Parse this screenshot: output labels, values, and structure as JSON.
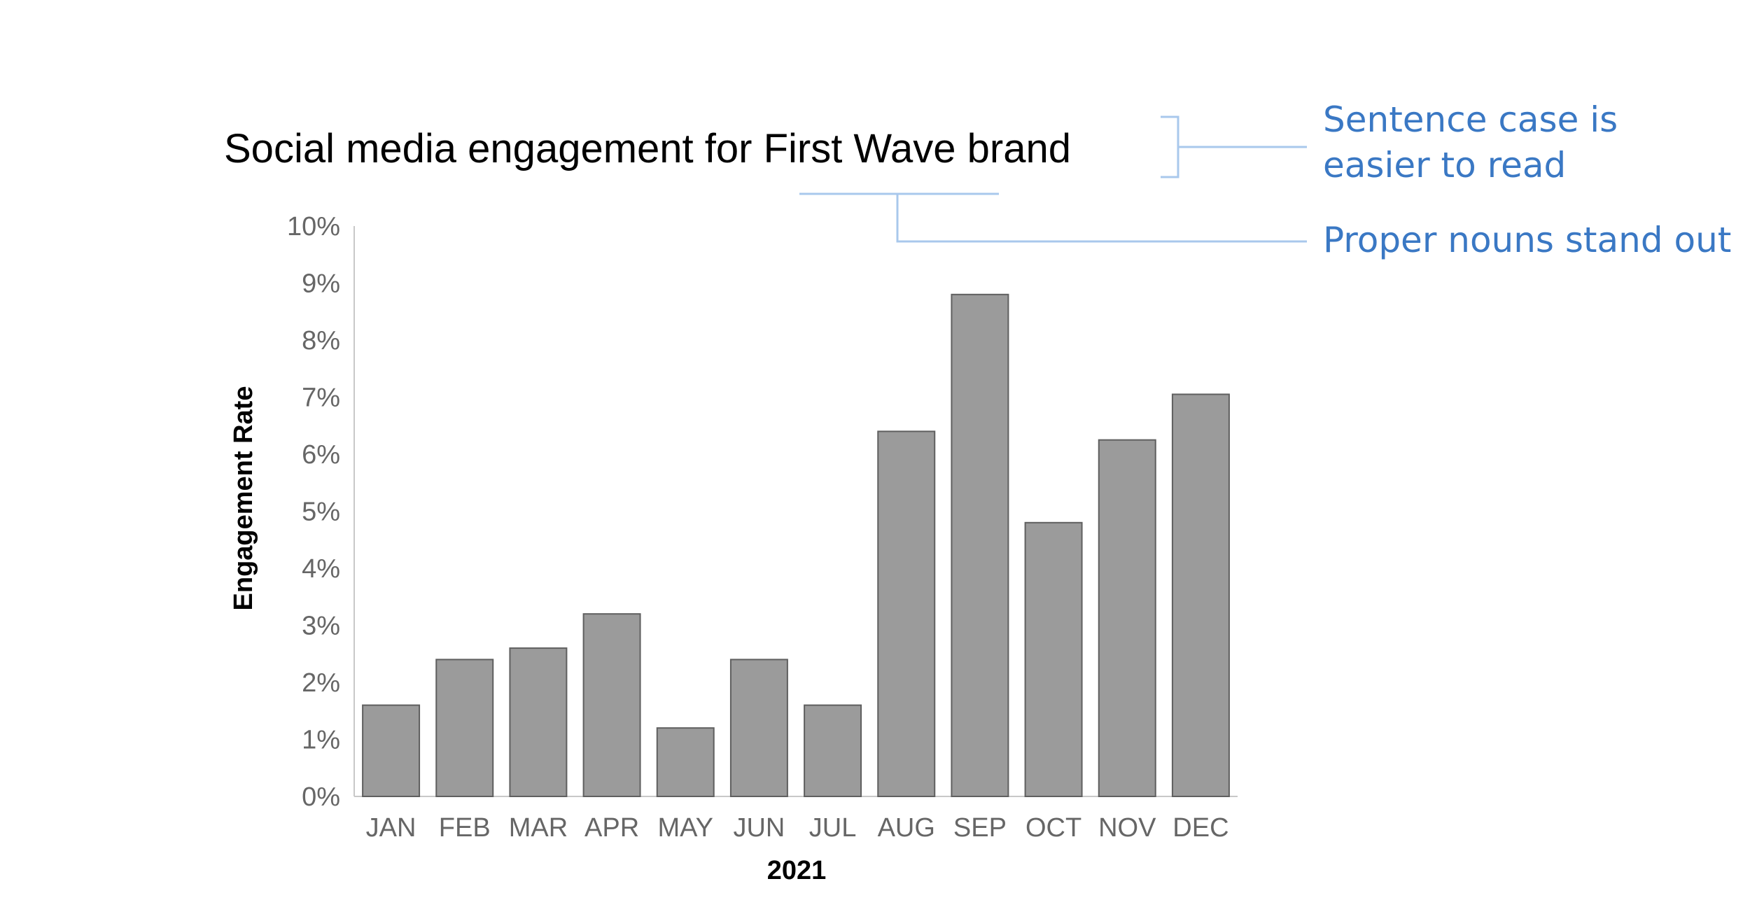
{
  "chart_data": {
    "type": "bar",
    "title": "Social media engagement for First Wave brand",
    "xlabel": "2021",
    "ylabel": "Engagement Rate",
    "categories": [
      "JAN",
      "FEB",
      "MAR",
      "APR",
      "MAY",
      "JUN",
      "JUL",
      "AUG",
      "SEP",
      "OCT",
      "NOV",
      "DEC"
    ],
    "values": [
      1.6,
      2.4,
      2.6,
      3.2,
      1.2,
      2.4,
      1.6,
      6.4,
      8.8,
      4.8,
      6.25,
      7.05
    ],
    "value_unit": "%",
    "ylim": [
      0,
      10
    ],
    "yticks": [
      "0%",
      "1%",
      "2%",
      "3%",
      "4%",
      "5%",
      "6%",
      "7%",
      "8%",
      "9%",
      "10%"
    ],
    "grid": false,
    "legend": "none",
    "bar_color": "#9b9b9b",
    "bar_edge_color": "#5f5f5f"
  },
  "annotations": {
    "color": "#3a78c4",
    "line_color": "#a9c8ec",
    "sentence_case": [
      "Sentence case is",
      "easier to read"
    ],
    "proper_nouns": "Proper nouns stand out"
  }
}
